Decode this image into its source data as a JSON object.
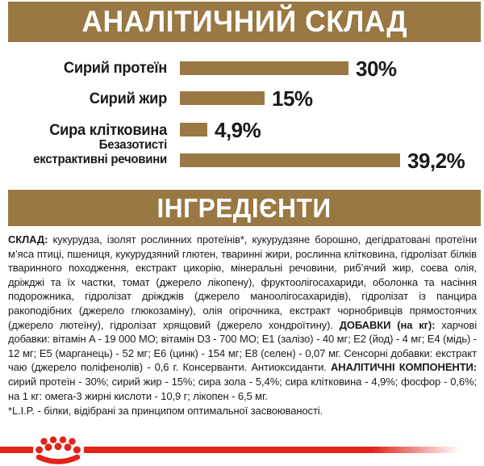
{
  "colors": {
    "brown": "#9A7843",
    "red": "#E2231A",
    "text": "#1A1A1A",
    "header_text": "#FFFFFF"
  },
  "sections": {
    "analytical": {
      "title": "АНАЛІТИЧНИЙ СКЛАД"
    },
    "ingredients_header": {
      "title": "ІНГРЕДІЄНТИ"
    }
  },
  "chart_data": {
    "type": "bar",
    "orientation": "horizontal",
    "categories": [
      "Сирий протеїн",
      "Сирий жир",
      "Сира клітковина",
      "Безазотисті екстрактивні речовини"
    ],
    "category_lines": [
      [
        "Сирий протеїн"
      ],
      [
        "Сирий жир"
      ],
      [
        "Сира клітковина"
      ],
      [
        "Безазотисті",
        "екстрактивні речовини"
      ]
    ],
    "values": [
      30,
      15,
      4.9,
      39.2
    ],
    "value_labels": [
      "30%",
      "15%",
      "4,9%",
      "39,2%"
    ],
    "unit": "%",
    "bar_color": "#9A7843",
    "xlim": [
      0,
      40
    ],
    "grid": false,
    "legend": "none"
  },
  "ingredients": {
    "segments": [
      {
        "bold": true,
        "text": "СКЛАД:"
      },
      {
        "bold": false,
        "text": " кукурудза, ізолят рослинних протеїнів*, кукурудзяне борошно, дегідратовані протеїни м’яса птиці, пшениця, кукурудзяний глютен, тваринні жири, рослинна клітковина, гідролізат білків тваринного походження, екстракт цикорію, мінеральні речовини, риб’ячий жир, соєва олія, дріжджі та їх частки, томат (джерело лікопену), фруктоолігосахариди, оболонка та насіння подорожника, гідролізат дріжджів (джерело маноолігосахаридів), гідролізат із панцира ракоподібних (джерело глюкозаміну), олія огірочника, екстракт чорнобривців прямостоячих (джерело лютеїну), гідролізат хрящовий (джерело хондроїтину). "
      },
      {
        "bold": true,
        "text": "ДОБАВКИ (на кг):"
      },
      {
        "bold": false,
        "text": " харчові добавки: вітамін A - 19 000 МО; вітамін D3 - 700 МО; E1 (залізо) - 40 мг; E2 (йод) - 4 мг; E4 (мідь) - 12 мг; E5 (марганець) - 52 мг; E6 (цинк) - 154 мг; E8 (селен) - 0,07 мг. Сенсорні добавки: екстракт чаю (джерело поліфенолів) - 0,6 г. Консерванти. Антиоксиданти. "
      },
      {
        "bold": true,
        "text": "АНАЛІТИЧНІ КОМПОНЕНТИ:"
      },
      {
        "bold": false,
        "text": " сирий протеїн - 30%; сирий жир - 15%; сира зола - 5,4%; сира клітковина - 4,9%; фосфор - 0,6%; на 1 кг: омега-3 жирні кислоти - 10,9 г; лікопен - 6,5 мг."
      }
    ],
    "footnote": "*L.I.P. - білки, відібрані за принципом оптимальної засвоюваності."
  },
  "footer": {
    "logo": "royal-canin-crown"
  }
}
